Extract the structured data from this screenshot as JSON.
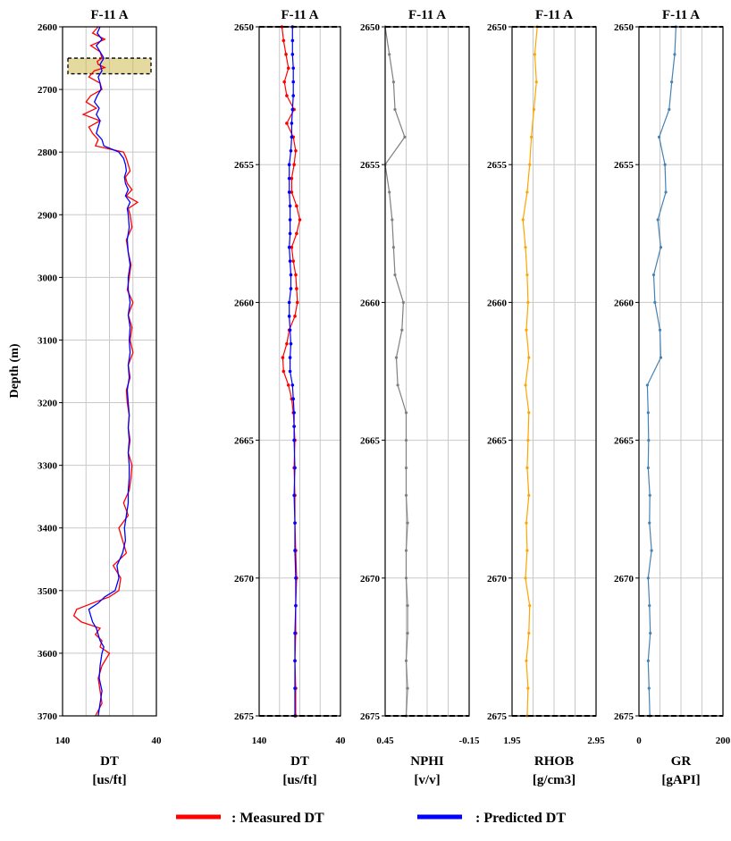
{
  "chart_data": {
    "type": "line",
    "panels": [
      {
        "title": "F-11 A",
        "ylabel": "Depth (m)",
        "xlabel": "DT",
        "xunit": "[us/ft]",
        "xlim": [
          140,
          40
        ],
        "ylim": [
          2600,
          3700
        ],
        "yticks": [
          2600,
          2700,
          2800,
          2900,
          3000,
          3100,
          3200,
          3300,
          3400,
          3500,
          3600,
          3700
        ],
        "xtick_labels": [
          "140",
          "40"
        ],
        "highlight_band": [
          2650,
          2675
        ],
        "grid": true,
        "series": [
          {
            "name": "Measured DT",
            "color": "#ff0000",
            "x": [
              2600,
              2610,
              2620,
              2630,
              2640,
              2650,
              2655,
              2660,
              2665,
              2670,
              2680,
              2690,
              2700,
              2710,
              2720,
              2730,
              2740,
              2750,
              2760,
              2770,
              2780,
              2790,
              2800,
              2810,
              2820,
              2830,
              2840,
              2850,
              2860,
              2870,
              2880,
              2890,
              2900,
              2920,
              2940,
              2960,
              2980,
              3000,
              3020,
              3040,
              3060,
              3080,
              3100,
              3120,
              3140,
              3160,
              3180,
              3200,
              3220,
              3240,
              3260,
              3280,
              3300,
              3320,
              3340,
              3360,
              3380,
              3400,
              3420,
              3440,
              3460,
              3480,
              3500,
              3510,
              3520,
              3530,
              3540,
              3550,
              3560,
              3570,
              3580,
              3590,
              3600,
              3620,
              3640,
              3660,
              3680,
              3700
            ],
            "y": [
              102,
              108,
              95,
              110,
              100,
              98,
              103,
              102,
              95,
              106,
              112,
              100,
              98,
              110,
              115,
              104,
              118,
              100,
              112,
              108,
              102,
              105,
              75,
              72,
              70,
              68,
              73,
              71,
              66,
              72,
              60,
              70,
              68,
              66,
              72,
              70,
              67,
              69,
              71,
              65,
              70,
              66,
              68,
              65,
              70,
              68,
              72,
              71,
              69,
              70,
              68,
              70,
              66,
              67,
              69,
              75,
              70,
              80,
              76,
              72,
              86,
              78,
              80,
              90,
              108,
              125,
              128,
              120,
              100,
              105,
              98,
              100,
              90,
              98,
              102,
              100,
              98,
              105
            ]
          },
          {
            "name": "Predicted DT",
            "color": "#0000ff",
            "x": [
              2600,
              2610,
              2620,
              2630,
              2640,
              2650,
              2660,
              2670,
              2680,
              2690,
              2700,
              2710,
              2720,
              2730,
              2740,
              2750,
              2760,
              2770,
              2780,
              2790,
              2800,
              2810,
              2820,
              2830,
              2840,
              2850,
              2860,
              2870,
              2880,
              2890,
              2900,
              2920,
              2940,
              2960,
              2980,
              3000,
              3020,
              3040,
              3060,
              3080,
              3100,
              3120,
              3140,
              3160,
              3180,
              3200,
              3220,
              3240,
              3260,
              3280,
              3300,
              3320,
              3340,
              3360,
              3380,
              3400,
              3420,
              3440,
              3460,
              3480,
              3500,
              3510,
              3520,
              3530,
              3540,
              3550,
              3560,
              3570,
              3580,
              3590,
              3600,
              3620,
              3640,
              3660,
              3680,
              3700
            ],
            "y": [
              100,
              103,
              98,
              104,
              100,
              96,
              100,
              98,
              102,
              100,
              99,
              103,
              106,
              101,
              104,
              100,
              102,
              104,
              98,
              96,
              80,
              75,
              73,
              72,
              74,
              73,
              70,
              73,
              68,
              71,
              70,
              69,
              71,
              70,
              68,
              70,
              70,
              68,
              70,
              68,
              69,
              68,
              70,
              69,
              71,
              70,
              69,
              70,
              69,
              70,
              69,
              69,
              70,
              70,
              72,
              74,
              73,
              76,
              82,
              80,
              84,
              95,
              102,
              112,
              110,
              108,
              104,
              102,
              100,
              96,
              98,
              100,
              101,
              98,
              100,
              102
            ]
          }
        ]
      },
      {
        "title": "F-11 A",
        "xlabel": "DT",
        "xunit": "[us/ft]",
        "xlim": [
          140,
          40
        ],
        "ylim": [
          2650,
          2675
        ],
        "yticks": [
          2650,
          2655,
          2660,
          2665,
          2670,
          2675
        ],
        "xtick_labels": [
          "140",
          "40"
        ],
        "grid": true,
        "series": [
          {
            "name": "Measured DT",
            "color": "#ff0000",
            "x": [
              2650,
              2650.5,
              2651,
              2651.5,
              2652,
              2652.5,
              2653,
              2653.5,
              2654,
              2654.5,
              2655,
              2655.5,
              2656,
              2656.5,
              2657,
              2657.5,
              2658,
              2658.5,
              2659,
              2659.5,
              2660,
              2660.5,
              2661,
              2661.5,
              2662,
              2662.5,
              2663,
              2663.5,
              2664,
              2664.5,
              2665,
              2666,
              2667,
              2668,
              2669,
              2670,
              2671,
              2672,
              2673,
              2674,
              2675
            ],
            "y": [
              112,
              110,
              107,
              104,
              109,
              106,
              97,
              106,
              98,
              95,
              97,
              100,
              100,
              94,
              90,
              94,
              100,
              98,
              95,
              94,
              93,
              96,
              103,
              106,
              111,
              110,
              104,
              100,
              98,
              97,
              96,
              97,
              96,
              96,
              95,
              94,
              95,
              95,
              96,
              95,
              95
            ]
          },
          {
            "name": "Predicted DT",
            "color": "#0000ff",
            "x": [
              2650,
              2650.5,
              2651,
              2651.5,
              2652,
              2652.5,
              2653,
              2653.5,
              2654,
              2654.5,
              2655,
              2655.5,
              2656,
              2656.5,
              2657,
              2657.5,
              2658,
              2658.5,
              2659,
              2659.5,
              2660,
              2660.5,
              2661,
              2661.5,
              2662,
              2662.5,
              2663,
              2663.5,
              2664,
              2664.5,
              2665,
              2666,
              2667,
              2668,
              2669,
              2670,
              2671,
              2672,
              2673,
              2674,
              2675
            ],
            "y": [
              99,
              99,
              99,
              98,
              98,
              98,
              99,
              100,
              100,
              101,
              103,
              103,
              103,
              102,
              102,
              102,
              103,
              102,
              101,
              101,
              103,
              103,
              102,
              101,
              102,
              102,
              99,
              98,
              97,
              97,
              97,
              96,
              97,
              96,
              96,
              95,
              95,
              96,
              96,
              96,
              96
            ]
          }
        ]
      },
      {
        "title": "F-11 A",
        "xlabel": "NPHI",
        "xunit": "[v/v]",
        "xlim": [
          0.45,
          -0.15
        ],
        "ylim": [
          2650,
          2675
        ],
        "yticks": [
          2650,
          2655,
          2660,
          2665,
          2670,
          2675
        ],
        "xtick_labels": [
          "0.45",
          "-0.15"
        ],
        "grid": true,
        "series": [
          {
            "name": "NPHI",
            "color": "#808080",
            "x": [
              2650,
              2651,
              2652,
              2653,
              2654,
              2655,
              2656,
              2657,
              2658,
              2659,
              2660,
              2661,
              2662,
              2663,
              2664,
              2665,
              2666,
              2667,
              2668,
              2669,
              2670,
              2671,
              2672,
              2673,
              2674,
              2675
            ],
            "y": [
              0.45,
              0.42,
              0.39,
              0.38,
              0.31,
              0.45,
              0.42,
              0.4,
              0.39,
              0.38,
              0.32,
              0.33,
              0.37,
              0.36,
              0.3,
              0.3,
              0.3,
              0.3,
              0.29,
              0.3,
              0.3,
              0.29,
              0.29,
              0.3,
              0.29,
              0.3
            ]
          }
        ]
      },
      {
        "title": "F-11 A",
        "xlabel": "RHOB",
        "xunit": "[g/cm3]",
        "xlim": [
          1.95,
          2.95
        ],
        "ylim": [
          2650,
          2675
        ],
        "yticks": [
          2650,
          2655,
          2660,
          2665,
          2670,
          2675
        ],
        "xtick_labels": [
          "1.95",
          "2.95"
        ],
        "grid": true,
        "series": [
          {
            "name": "RHOB",
            "color": "#ffa500",
            "x": [
              2650,
              2651,
              2652,
              2653,
              2654,
              2655,
              2656,
              2657,
              2658,
              2659,
              2660,
              2661,
              2662,
              2663,
              2664,
              2665,
              2666,
              2667,
              2668,
              2669,
              2670,
              2671,
              2672,
              2673,
              2674,
              2675
            ],
            "y": [
              2.25,
              2.22,
              2.24,
              2.21,
              2.18,
              2.16,
              2.13,
              2.08,
              2.11,
              2.13,
              2.14,
              2.12,
              2.15,
              2.11,
              2.15,
              2.14,
              2.13,
              2.15,
              2.12,
              2.13,
              2.11,
              2.16,
              2.15,
              2.12,
              2.14,
              2.13
            ]
          }
        ]
      },
      {
        "title": "F-11 A",
        "xlabel": "GR",
        "xunit": "[gAPI]",
        "xlim": [
          0,
          200
        ],
        "ylim": [
          2650,
          2675
        ],
        "yticks": [
          2650,
          2655,
          2660,
          2665,
          2670,
          2675
        ],
        "xtick_labels": [
          "0",
          "200"
        ],
        "grid": true,
        "series": [
          {
            "name": "GR",
            "color": "#4682b4",
            "x": [
              2650,
              2651,
              2652,
              2653,
              2654,
              2655,
              2656,
              2657,
              2658,
              2659,
              2660,
              2661,
              2662,
              2663,
              2664,
              2665,
              2666,
              2667,
              2668,
              2669,
              2670,
              2671,
              2672,
              2673,
              2674,
              2675
            ],
            "y": [
              88,
              85,
              78,
              72,
              48,
              62,
              64,
              45,
              52,
              35,
              38,
              50,
              52,
              20,
              22,
              23,
              22,
              26,
              25,
              30,
              22,
              25,
              27,
              22,
              24,
              26
            ]
          }
        ]
      }
    ],
    "legend": {
      "placement": "bottom",
      "items": [
        {
          "label": ": Measured DT",
          "color": "#ff0000"
        },
        {
          "label": ": Predicted DT",
          "color": "#0000ff"
        }
      ]
    }
  }
}
